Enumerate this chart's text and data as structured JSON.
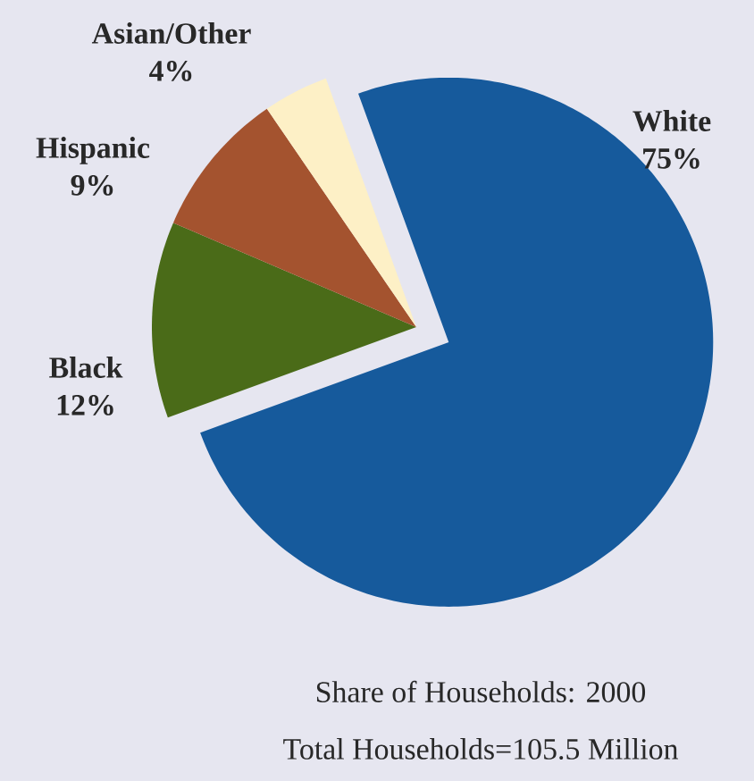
{
  "chart_data": {
    "type": "pie",
    "categories": [
      "White",
      "Black",
      "Hispanic",
      "Asian/Other"
    ],
    "values": [
      75,
      12,
      9,
      4
    ],
    "value_labels": [
      "75%",
      "12%",
      "9%",
      "4%"
    ],
    "colors": [
      "#165a9c",
      "#4a6b18",
      "#a4532f",
      "#fdf0c6"
    ],
    "annotations": [
      "Share of Households: 2000",
      "Total Households=105.5 Million"
    ]
  }
}
